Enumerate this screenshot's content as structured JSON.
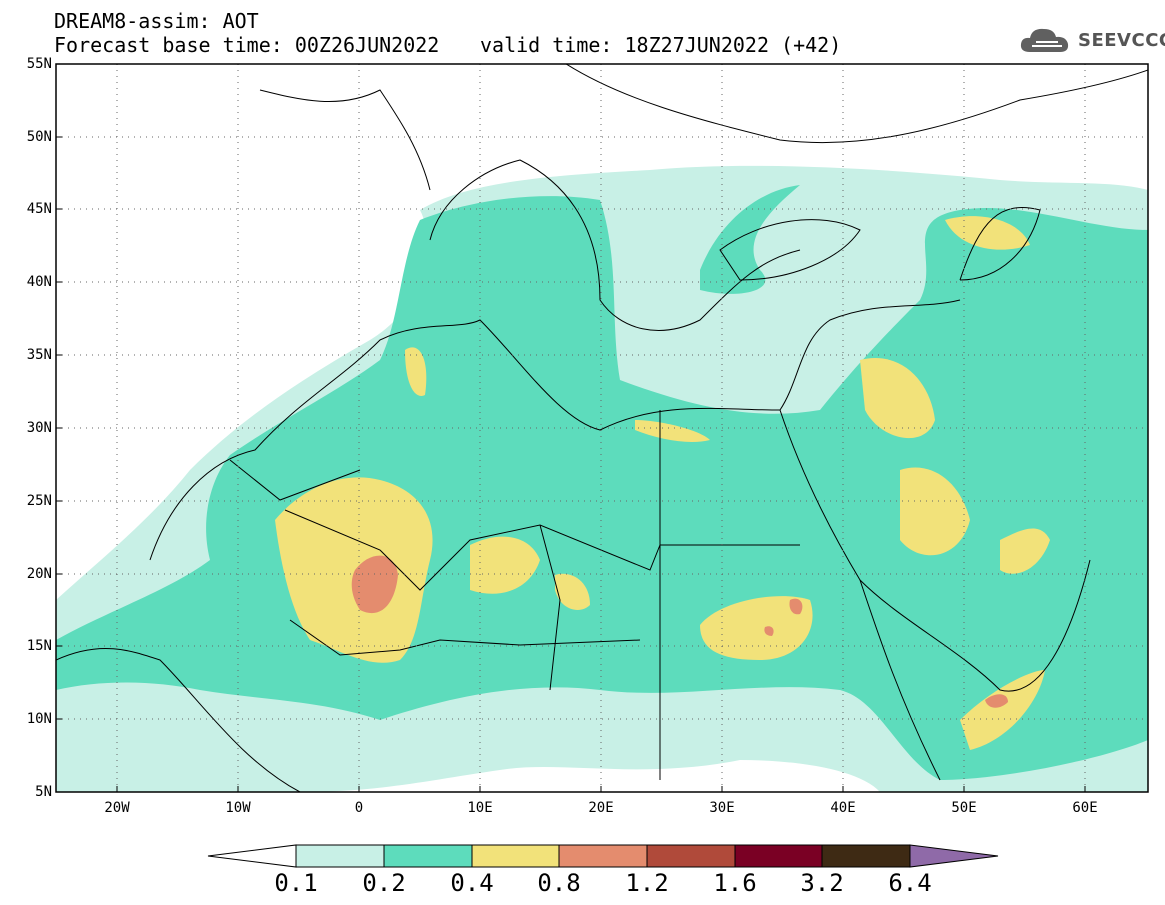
{
  "header": {
    "model_line": "DREAM8-assim: AOT",
    "base_line": "Forecast base time: 00Z26JUN2022",
    "valid_line": "valid time: 18Z27JUN2022 (+42)",
    "logo_text": "SEEVCCC"
  },
  "map": {
    "lat_labels": [
      "55N",
      "50N",
      "45N",
      "40N",
      "35N",
      "30N",
      "25N",
      "20N",
      "15N",
      "10N",
      "5N"
    ],
    "lon_labels": [
      "20W",
      "10W",
      "0",
      "10E",
      "20E",
      "30E",
      "40E",
      "50E",
      "60E"
    ],
    "colors": {
      "c1": "#c8f0e6",
      "c2": "#5ddcbc",
      "c3": "#f2e27a",
      "c4": "#e48c6e"
    }
  },
  "colorbar": {
    "ticks": [
      "0.1",
      "0.2",
      "0.4",
      "0.8",
      "1.2",
      "1.6",
      "3.2",
      "6.4"
    ],
    "colors": [
      "#c8f0e6",
      "#5ddcbc",
      "#f2e27a",
      "#e48c6e",
      "#b04a3a",
      "#7a0024",
      "#3e2a14",
      "#8f6aa8"
    ]
  }
}
